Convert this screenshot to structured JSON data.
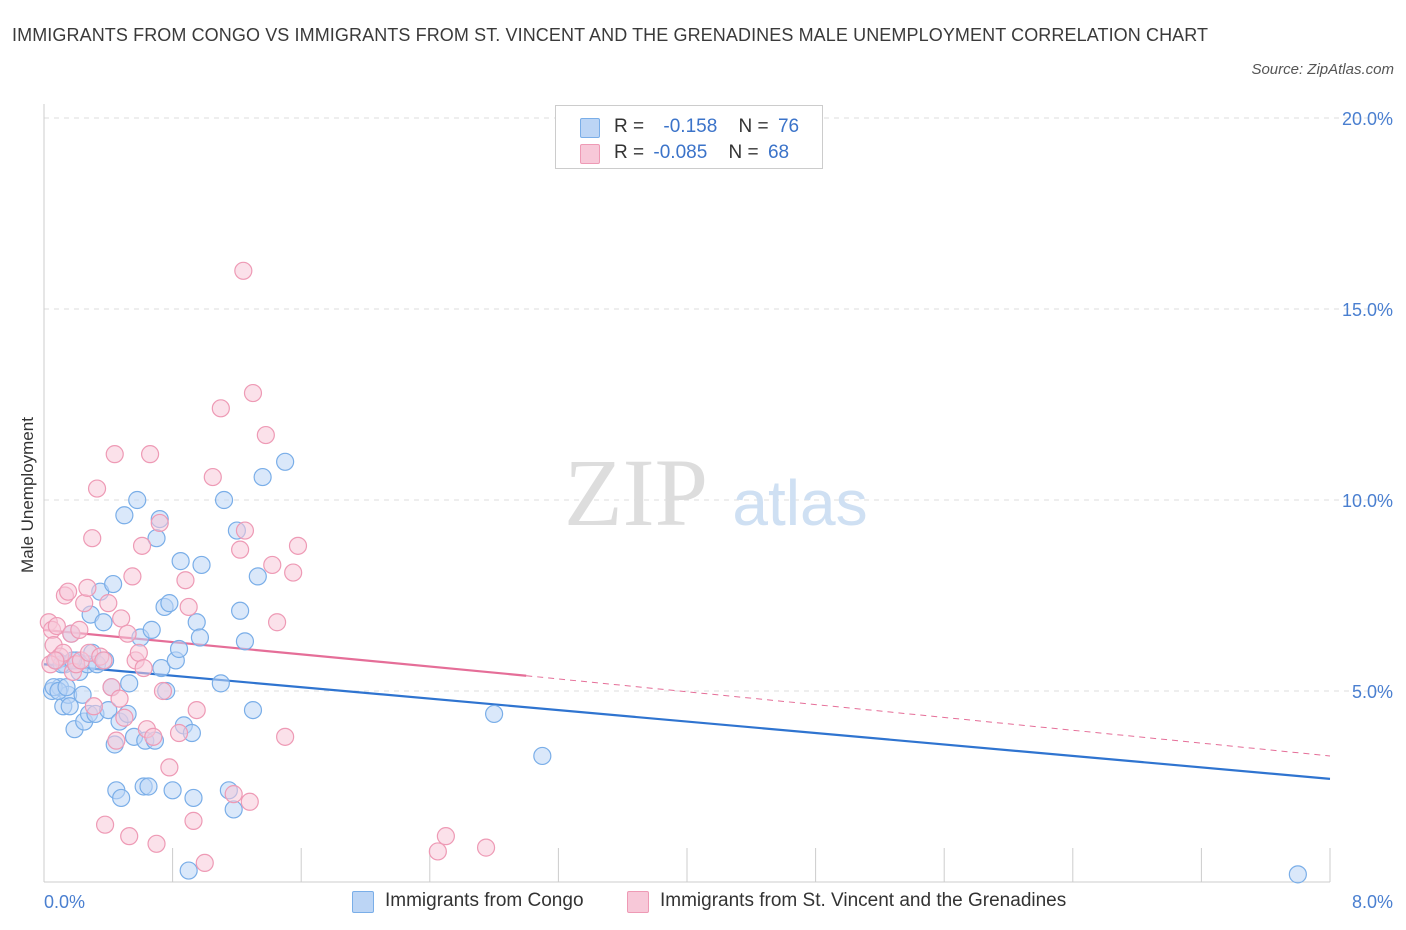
{
  "header": {
    "title": "IMMIGRANTS FROM CONGO VS IMMIGRANTS FROM ST. VINCENT AND THE GRENADINES MALE UNEMPLOYMENT CORRELATION CHART",
    "source": "Source: ZipAtlas.com"
  },
  "watermark": {
    "zip": "ZIP",
    "atlas": "atlas"
  },
  "legend": {
    "rows": [
      {
        "r_label": "R =",
        "r_value": "-0.158",
        "n_label": "N =",
        "n_value": "76"
      },
      {
        "r_label": "R =",
        "r_value": "-0.085",
        "n_label": "N =",
        "n_value": "68"
      }
    ]
  },
  "chart_data": {
    "type": "scatter",
    "title": "IMMIGRANTS FROM CONGO VS IMMIGRANTS FROM ST. VINCENT AND THE GRENADINES MALE UNEMPLOYMENT CORRELATION CHART",
    "xlabel": "",
    "ylabel": "Male Unemployment",
    "xlim": [
      0,
      8
    ],
    "ylim": [
      0,
      20
    ],
    "x_tick_labels": [
      "0.0%",
      "8.0%"
    ],
    "y_ticks": [
      5,
      10,
      15,
      20
    ],
    "y_tick_labels": [
      "5.0%",
      "10.0%",
      "15.0%",
      "20.0%"
    ],
    "grid": true,
    "legend_position": "bottom-center",
    "series": [
      {
        "name": "Immigrants from Congo",
        "color": "#7aaee8",
        "fill": "#bcd5f5",
        "trend": {
          "x": [
            0,
            8
          ],
          "y": [
            5.7,
            2.7
          ],
          "dashed_extension": false
        },
        "points": [
          [
            0.05,
            5.0
          ],
          [
            0.08,
            5.8
          ],
          [
            0.1,
            5.1
          ],
          [
            0.12,
            4.6
          ],
          [
            0.13,
            5.7
          ],
          [
            0.15,
            4.9
          ],
          [
            0.17,
            6.5
          ],
          [
            0.19,
            4.0
          ],
          [
            0.2,
            5.8
          ],
          [
            0.22,
            5.5
          ],
          [
            0.24,
            4.9
          ],
          [
            0.25,
            4.2
          ],
          [
            0.27,
            5.7
          ],
          [
            0.28,
            4.4
          ],
          [
            0.29,
            7.0
          ],
          [
            0.3,
            6.0
          ],
          [
            0.32,
            4.4
          ],
          [
            0.33,
            5.7
          ],
          [
            0.35,
            7.6
          ],
          [
            0.37,
            6.8
          ],
          [
            0.38,
            5.8
          ],
          [
            0.4,
            4.5
          ],
          [
            0.42,
            5.1
          ],
          [
            0.43,
            7.8
          ],
          [
            0.44,
            3.6
          ],
          [
            0.45,
            2.4
          ],
          [
            0.47,
            4.2
          ],
          [
            0.48,
            2.2
          ],
          [
            0.5,
            9.6
          ],
          [
            0.52,
            4.4
          ],
          [
            0.53,
            5.2
          ],
          [
            0.56,
            3.8
          ],
          [
            0.58,
            10.0
          ],
          [
            0.6,
            6.4
          ],
          [
            0.62,
            2.5
          ],
          [
            0.63,
            3.7
          ],
          [
            0.65,
            2.5
          ],
          [
            0.67,
            6.6
          ],
          [
            0.69,
            3.7
          ],
          [
            0.7,
            9.0
          ],
          [
            0.72,
            9.5
          ],
          [
            0.73,
            5.6
          ],
          [
            0.75,
            7.2
          ],
          [
            0.76,
            5.0
          ],
          [
            0.78,
            7.3
          ],
          [
            0.8,
            2.4
          ],
          [
            0.82,
            5.8
          ],
          [
            0.84,
            6.1
          ],
          [
            0.85,
            8.4
          ],
          [
            0.87,
            4.1
          ],
          [
            0.9,
            0.3
          ],
          [
            0.92,
            3.9
          ],
          [
            0.93,
            2.2
          ],
          [
            0.95,
            6.8
          ],
          [
            0.97,
            6.4
          ],
          [
            0.98,
            8.3
          ],
          [
            1.1,
            5.2
          ],
          [
            1.15,
            2.4
          ],
          [
            1.18,
            1.9
          ],
          [
            1.2,
            9.2
          ],
          [
            1.22,
            7.1
          ],
          [
            1.25,
            6.3
          ],
          [
            1.3,
            4.5
          ],
          [
            1.33,
            8.0
          ],
          [
            1.36,
            10.6
          ],
          [
            1.12,
            10.0
          ],
          [
            1.5,
            11.0
          ],
          [
            2.8,
            4.4
          ],
          [
            3.1,
            3.3
          ],
          [
            7.8,
            0.2
          ],
          [
            0.06,
            5.1
          ],
          [
            0.09,
            5.0
          ],
          [
            0.11,
            5.7
          ],
          [
            0.14,
            5.1
          ],
          [
            0.16,
            4.6
          ],
          [
            0.18,
            5.8
          ]
        ]
      },
      {
        "name": "Immigrants from St. Vincent and the Grenadines",
        "color": "#ee9ab5",
        "fill": "#f7c8d8",
        "trend": {
          "x": [
            0,
            3.0,
            8
          ],
          "y": [
            6.6,
            5.4,
            3.3
          ],
          "dashed_extension": true
        },
        "points": [
          [
            0.03,
            6.8
          ],
          [
            0.05,
            6.6
          ],
          [
            0.06,
            6.2
          ],
          [
            0.08,
            6.7
          ],
          [
            0.1,
            5.9
          ],
          [
            0.12,
            6.0
          ],
          [
            0.13,
            7.5
          ],
          [
            0.15,
            7.6
          ],
          [
            0.17,
            6.5
          ],
          [
            0.18,
            5.5
          ],
          [
            0.2,
            5.7
          ],
          [
            0.22,
            6.6
          ],
          [
            0.23,
            5.8
          ],
          [
            0.25,
            7.3
          ],
          [
            0.27,
            7.7
          ],
          [
            0.28,
            6.0
          ],
          [
            0.3,
            9.0
          ],
          [
            0.31,
            4.6
          ],
          [
            0.33,
            10.3
          ],
          [
            0.35,
            5.9
          ],
          [
            0.37,
            5.8
          ],
          [
            0.38,
            1.5
          ],
          [
            0.4,
            7.3
          ],
          [
            0.42,
            5.1
          ],
          [
            0.44,
            11.2
          ],
          [
            0.45,
            3.7
          ],
          [
            0.47,
            4.8
          ],
          [
            0.48,
            6.9
          ],
          [
            0.5,
            4.3
          ],
          [
            0.52,
            6.5
          ],
          [
            0.53,
            1.2
          ],
          [
            0.55,
            8.0
          ],
          [
            0.57,
            5.8
          ],
          [
            0.59,
            6.0
          ],
          [
            0.61,
            8.8
          ],
          [
            0.62,
            5.6
          ],
          [
            0.64,
            4.0
          ],
          [
            0.66,
            11.2
          ],
          [
            0.68,
            3.8
          ],
          [
            0.7,
            1.0
          ],
          [
            0.72,
            9.4
          ],
          [
            0.74,
            5.0
          ],
          [
            0.78,
            3.0
          ],
          [
            0.84,
            3.9
          ],
          [
            0.88,
            7.9
          ],
          [
            0.9,
            7.2
          ],
          [
            0.95,
            4.5
          ],
          [
            1.0,
            0.5
          ],
          [
            1.05,
            10.6
          ],
          [
            1.1,
            12.4
          ],
          [
            1.18,
            2.3
          ],
          [
            1.22,
            8.7
          ],
          [
            1.25,
            9.2
          ],
          [
            1.28,
            2.1
          ],
          [
            1.3,
            12.8
          ],
          [
            1.38,
            11.7
          ],
          [
            1.42,
            8.3
          ],
          [
            1.45,
            6.8
          ],
          [
            1.55,
            8.1
          ],
          [
            1.58,
            8.8
          ],
          [
            1.24,
            16.0
          ],
          [
            1.5,
            3.8
          ],
          [
            2.45,
            0.8
          ],
          [
            2.5,
            1.2
          ],
          [
            2.75,
            0.9
          ],
          [
            0.93,
            1.6
          ],
          [
            0.04,
            5.7
          ],
          [
            0.07,
            5.8
          ]
        ]
      }
    ]
  }
}
